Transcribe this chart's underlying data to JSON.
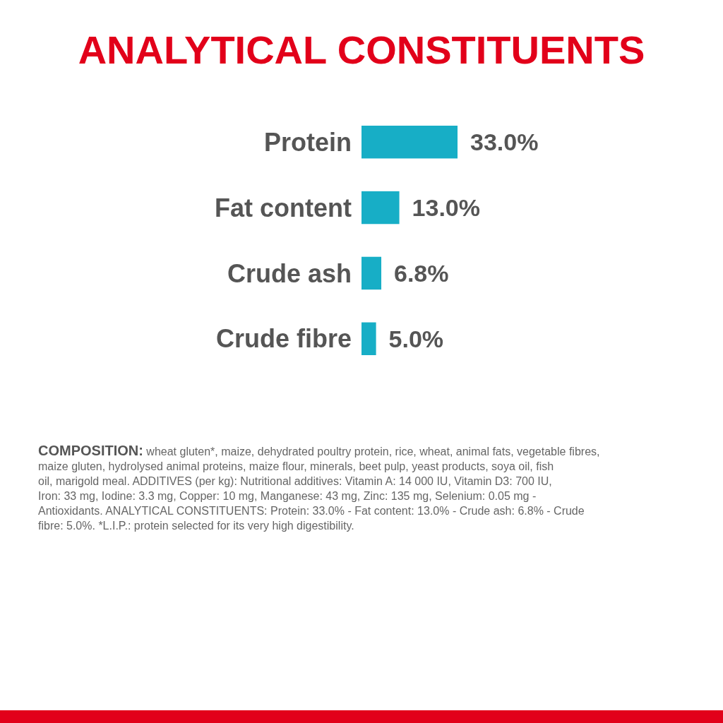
{
  "chart_data": {
    "type": "bar",
    "orientation": "horizontal",
    "title": "ANALYTICAL CONSTITUENTS",
    "categories": [
      "Protein",
      "Fat content",
      "Crude ash",
      "Crude fibre"
    ],
    "values": [
      33.0,
      13.0,
      6.8,
      5.0
    ],
    "value_labels": [
      "33.0%",
      "13.0%",
      "6.8%",
      "5.0%"
    ],
    "color": "#17aec6",
    "annotations": [
      "COMPOSITION: wheat gluten*, maize, dehydrated poultry protein, rice, wheat, animal fats, vegetable fibres, maize gluten, hydrolysed animal proteins, maize flour, minerals, beet pulp, yeast products, soya oil, fish oil, marigold meal. ADDITIVES (per kg): Nutritional additives: Vitamin A: 14 000 IU, Vitamin D3: 700 IU, Iron: 33 mg, Iodine: 3.3 mg, Copper: 10 mg, Manganese: 43 mg, Zinc: 135 mg, Selenium: 0.05 mg - Antioxidants. ANALYTICAL CONSTITUENTS: Protein: 33.0% - Fat content: 13.0% - Crude ash: 6.8% - Crude fibre: 5.0%. *L.I.P.: protein selected for its very high digestibility."
    ]
  }
}
